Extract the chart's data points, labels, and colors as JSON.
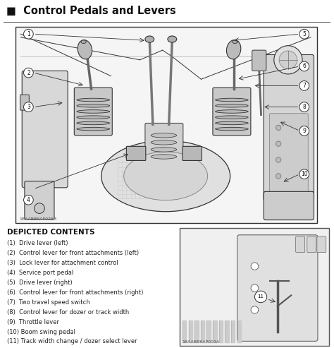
{
  "title": "Control Pedals and Levers",
  "title_marker": "■",
  "depicted_contents_title": "DEPICTED CONTENTS",
  "items": [
    "(1)  Drive lever (left)",
    "(2)  Control lever for front attachments (left)",
    "(3)  Lock lever for attachment control",
    "(4)  Service port pedal",
    "(5)  Drive lever (right)",
    "(6)  Control lever for front attachments (right)",
    "(7)  Two travel speed switch",
    "(8)  Control lever for dozer or track width",
    "(9)  Throttle lever",
    "(10) Boom swing pedal",
    "(11) Track width change / dozer select lever"
  ],
  "fig_label_main": "1BAABBKAP025B",
  "fig_label_inset": "1BAABBKAP003A",
  "bg_color": "#ffffff",
  "lc": "#333333",
  "figsize": [
    4.74,
    4.93
  ],
  "dpi": 100
}
